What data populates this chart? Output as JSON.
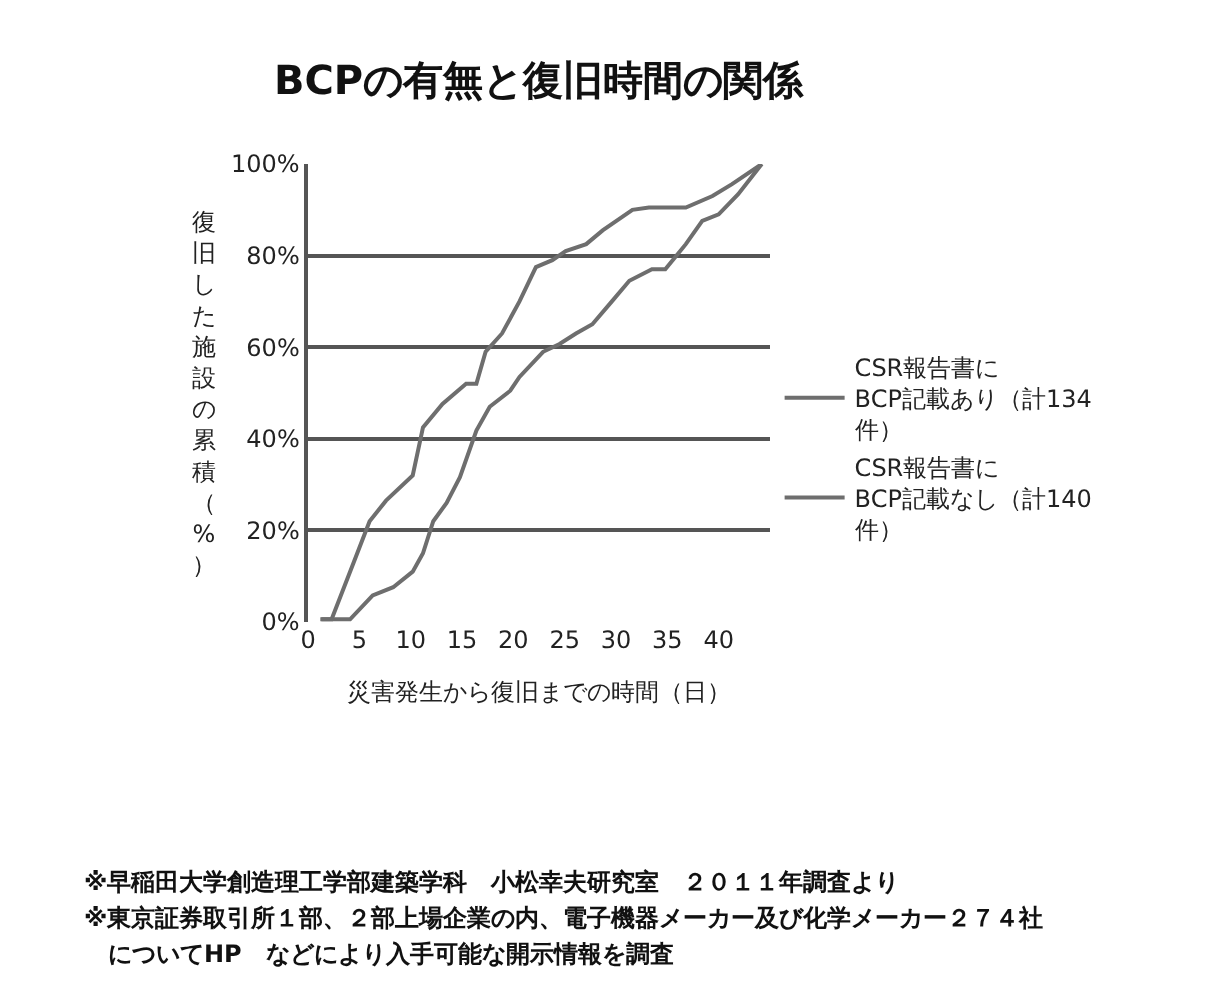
{
  "chart_data": {
    "type": "line",
    "title": "BCPの有無と復旧時間の関係",
    "xlabel": "災害発生から復旧までの時間（日）",
    "ylabel": "復旧した施設の累積（%）",
    "series": [
      {
        "name": "CSR報告書に\nBCP記載あり（計134\n件）",
        "color": "#6e6e6e",
        "x": [
          1.3,
          2.3,
          4.4,
          6.0,
          7.6,
          10.2,
          11.2,
          13.1,
          15.4,
          16.4,
          17.3,
          18.9,
          20.6,
          22.2,
          23.8,
          25.1,
          27.1,
          28.7,
          31.6,
          33.2,
          36.8,
          39.4,
          41.3,
          44.2
        ],
        "values": [
          0.6,
          0.6,
          12.7,
          22,
          26.5,
          32,
          42.5,
          47.6,
          52,
          52,
          59,
          63,
          70,
          77.5,
          79,
          81,
          82.5,
          85.5,
          90,
          90.5,
          90.5,
          93,
          95.6,
          100
        ]
      },
      {
        "name": "CSR報告書に\nBCP記載なし（計140\n件）",
        "color": "#6e6e6e",
        "x": [
          1.2,
          4.1,
          6.3,
          8.3,
          10.2,
          11.2,
          12.2,
          13.5,
          14.8,
          16.4,
          17.7,
          19.7,
          20.6,
          22.9,
          24.5,
          26.1,
          27.7,
          29.6,
          31.3,
          33.5,
          34.8,
          36.8,
          38.4,
          40.0,
          41.9,
          44.2
        ],
        "values": [
          0.6,
          0.6,
          5.8,
          7.6,
          11,
          15,
          22,
          26,
          31.6,
          41.8,
          47,
          50.5,
          53.5,
          59,
          60.7,
          63,
          65,
          70,
          74.5,
          77,
          77,
          82.5,
          87.6,
          89,
          93.4,
          100
        ]
      }
    ],
    "xlim": [
      0,
      45
    ],
    "xticks": [
      0,
      5,
      10,
      15,
      20,
      25,
      30,
      35,
      40
    ],
    "ylim": [
      0,
      100
    ],
    "yticks": [
      {
        "value": 0,
        "label": "0%"
      },
      {
        "value": 20,
        "label": "20%"
      },
      {
        "value": 40,
        "label": "40%"
      },
      {
        "value": 60,
        "label": "60%"
      },
      {
        "value": 80,
        "label": "80%"
      },
      {
        "value": 100,
        "label": "100%"
      }
    ],
    "grid": "y",
    "legend": "right",
    "marker": "none",
    "line_style": "solid",
    "annotations": [
      "※早稲田大学創造理工学部建築学科　小松幸夫研究室　２０１１年調査より",
      "※東京証券取引所１部、２部上場企業の内、電子機器メーカー及び化学メーカー２７４社",
      "　についてHP　などにより入手可能な開示情報を調査"
    ]
  }
}
